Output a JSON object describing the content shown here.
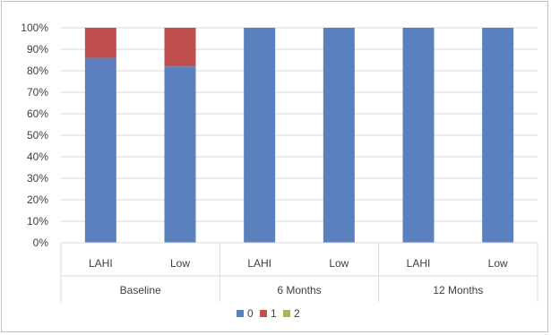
{
  "chart_data": {
    "type": "bar",
    "stacked": true,
    "normalized": true,
    "groups": [
      {
        "label": "Baseline",
        "categories": [
          "LAHI",
          "Low"
        ]
      },
      {
        "label": "6 Months",
        "categories": [
          "LAHI",
          "Low"
        ]
      },
      {
        "label": "12 Months",
        "categories": [
          "LAHI",
          "Low"
        ]
      }
    ],
    "categories": [
      "LAHI",
      "Low",
      "LAHI",
      "Low",
      "LAHI",
      "Low"
    ],
    "series": [
      {
        "name": "0",
        "color": "#5a80bd",
        "values": [
          86,
          82,
          100,
          100,
          100,
          100
        ]
      },
      {
        "name": "1",
        "color": "#c0504d",
        "values": [
          14,
          18,
          0,
          0,
          0,
          0
        ]
      },
      {
        "name": "2",
        "color": "#9bbb59",
        "values": [
          0,
          0,
          0,
          0,
          0,
          0
        ]
      }
    ],
    "y_ticks": [
      "0%",
      "10%",
      "20%",
      "30%",
      "40%",
      "50%",
      "60%",
      "70%",
      "80%",
      "90%",
      "100%"
    ],
    "ylim": [
      0,
      100
    ],
    "grid": true,
    "legend_position": "bottom"
  }
}
